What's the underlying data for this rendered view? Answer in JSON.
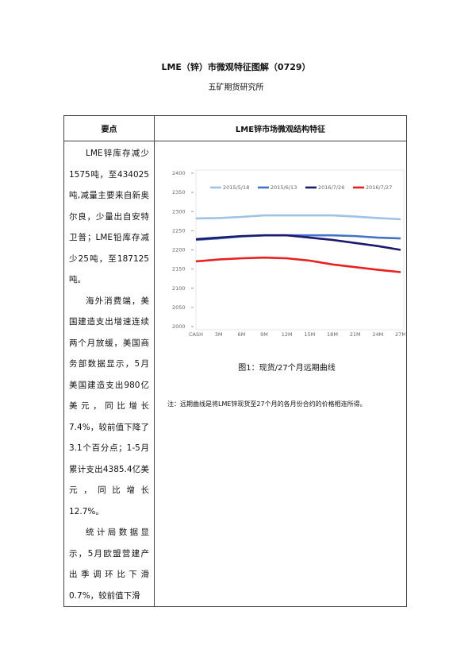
{
  "title": "LME（锌）市微观特征图解（0729）",
  "subtitle": "五矿期货研究所",
  "table": {
    "headers": [
      "要点",
      "LME锌市场微观结构特征"
    ],
    "paragraphs": [
      "LME锌库存减少1575吨，至434025吨,减量主要来自新奥尔良，少量出自安特卫普；LME铅库存减少25吨，至187125吨。",
      "海外消费端，美国建造支出增速连续两个月放缓，美国商务部数据显示，5月美国建造支出980亿美元，同比增长7.4%，较前值下降了3.1个百分点；1-5月累计支出4385.4亿美元，同比增长12.7%。",
      "统计局数据显示，5月欧盟营建产出季调环比下滑0.7%，较前值下滑"
    ],
    "caption": "图1：现货/27个月远期曲线",
    "note": "注：远期曲线是将LME锌现货至27个月的各月份合约的价格相连所得。"
  },
  "chart_data": {
    "type": "line",
    "categories": [
      "CASH",
      "3M",
      "6M",
      "9M",
      "12M",
      "15M",
      "18M",
      "21M",
      "24M",
      "27M"
    ],
    "series": [
      {
        "name": "2015/5/18",
        "color": "#9dc3e6",
        "values": [
          2282,
          2283,
          2286,
          2290,
          2290,
          2290,
          2290,
          2287,
          2283,
          2280
        ]
      },
      {
        "name": "2015/6/13",
        "color": "#4472c4",
        "values": [
          2226,
          2230,
          2235,
          2238,
          2238,
          2238,
          2238,
          2236,
          2232,
          2230
        ]
      },
      {
        "name": "2016/7/26",
        "color": "#1a1a6e",
        "values": [
          2228,
          2232,
          2236,
          2238,
          2238,
          2232,
          2226,
          2218,
          2210,
          2200
        ]
      },
      {
        "name": "2016/7/27",
        "color": "#e8201e",
        "values": [
          2170,
          2175,
          2178,
          2180,
          2178,
          2172,
          2162,
          2155,
          2148,
          2142
        ]
      }
    ],
    "ylim": [
      2000,
      2400
    ],
    "yticks": [
      2000,
      2050,
      2100,
      2150,
      2200,
      2250,
      2300,
      2350,
      2400
    ],
    "legend": "top"
  }
}
